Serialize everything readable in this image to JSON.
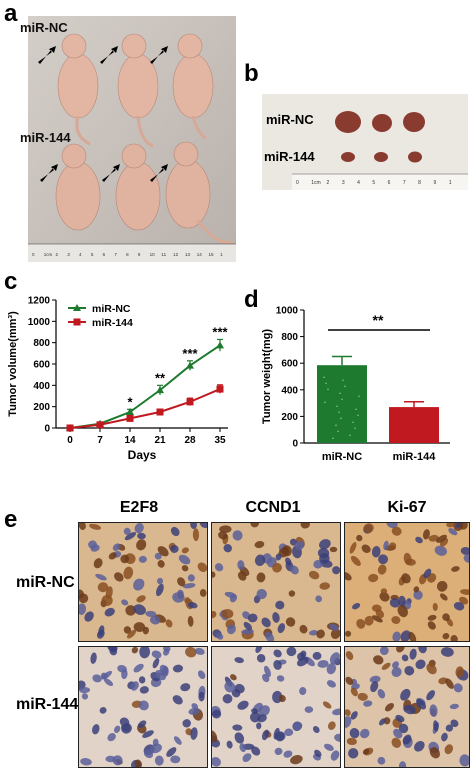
{
  "panels": {
    "a": {
      "letter": "a",
      "label_nc": "miR-NC",
      "label_144": "miR-144",
      "ruler_numbers": [
        "0",
        "1cm",
        "2",
        "3",
        "4",
        "5",
        "6",
        "7",
        "8",
        "9",
        "10",
        "11",
        "12",
        "13",
        "14",
        "15",
        "1"
      ]
    },
    "b": {
      "letter": "b",
      "label_nc": "miR-NC",
      "label_144": "miR-144",
      "ruler_numbers": [
        "0",
        "1cm",
        "2",
        "3",
        "4",
        "5",
        "6",
        "7",
        "8",
        "9",
        "1"
      ]
    },
    "c": {
      "letter": "c"
    },
    "d": {
      "letter": "d"
    },
    "e": {
      "letter": "e",
      "columns": [
        "E2F8",
        "CCND1",
        "Ki-67"
      ],
      "rows": [
        "miR-NC",
        "miR-144"
      ]
    }
  },
  "colors": {
    "nc": "#1e7a2e",
    "mir144": "#c0191f",
    "photo_bg": "#c9c2bd",
    "stain_nc": "#d9b890",
    "stain_144": "#e2d3c8"
  },
  "chart_data": [
    {
      "type": "line",
      "xlabel": "Days",
      "ylabel": "Tumor volume(mm³)",
      "x": [
        0,
        7,
        14,
        21,
        28,
        35
      ],
      "xlim": [
        0,
        35
      ],
      "ylim": [
        0,
        1000
      ],
      "yticks": [
        "0",
        "200",
        "400",
        "600",
        "800",
        "1000",
        "1200"
      ],
      "xticks": [
        "0",
        "7",
        "14",
        "21",
        "28",
        "35"
      ],
      "legend_position": "top-left",
      "series": [
        {
          "name": "miR-NC",
          "values": [
            0,
            40,
            150,
            355,
            585,
            775
          ],
          "errors": [
            5,
            10,
            25,
            45,
            45,
            55
          ],
          "marker": "triangle"
        },
        {
          "name": "miR-144",
          "values": [
            0,
            30,
            90,
            150,
            245,
            365
          ],
          "errors": [
            5,
            8,
            20,
            25,
            35,
            40
          ],
          "marker": "square"
        }
      ],
      "annotations": [
        {
          "x": 14,
          "text": "*"
        },
        {
          "x": 21,
          "text": "**"
        },
        {
          "x": 28,
          "text": "***"
        },
        {
          "x": 35,
          "text": "***"
        }
      ]
    },
    {
      "type": "bar",
      "ylabel": "Tumor weight(mg)",
      "categories": [
        "miR-NC",
        "miR-144"
      ],
      "values": [
        585,
        270
      ],
      "errors": [
        65,
        40
      ],
      "ylim": [
        0,
        1000
      ],
      "yticks": [
        "0",
        "200",
        "400",
        "600",
        "800",
        "1000"
      ],
      "significance": "**"
    }
  ]
}
